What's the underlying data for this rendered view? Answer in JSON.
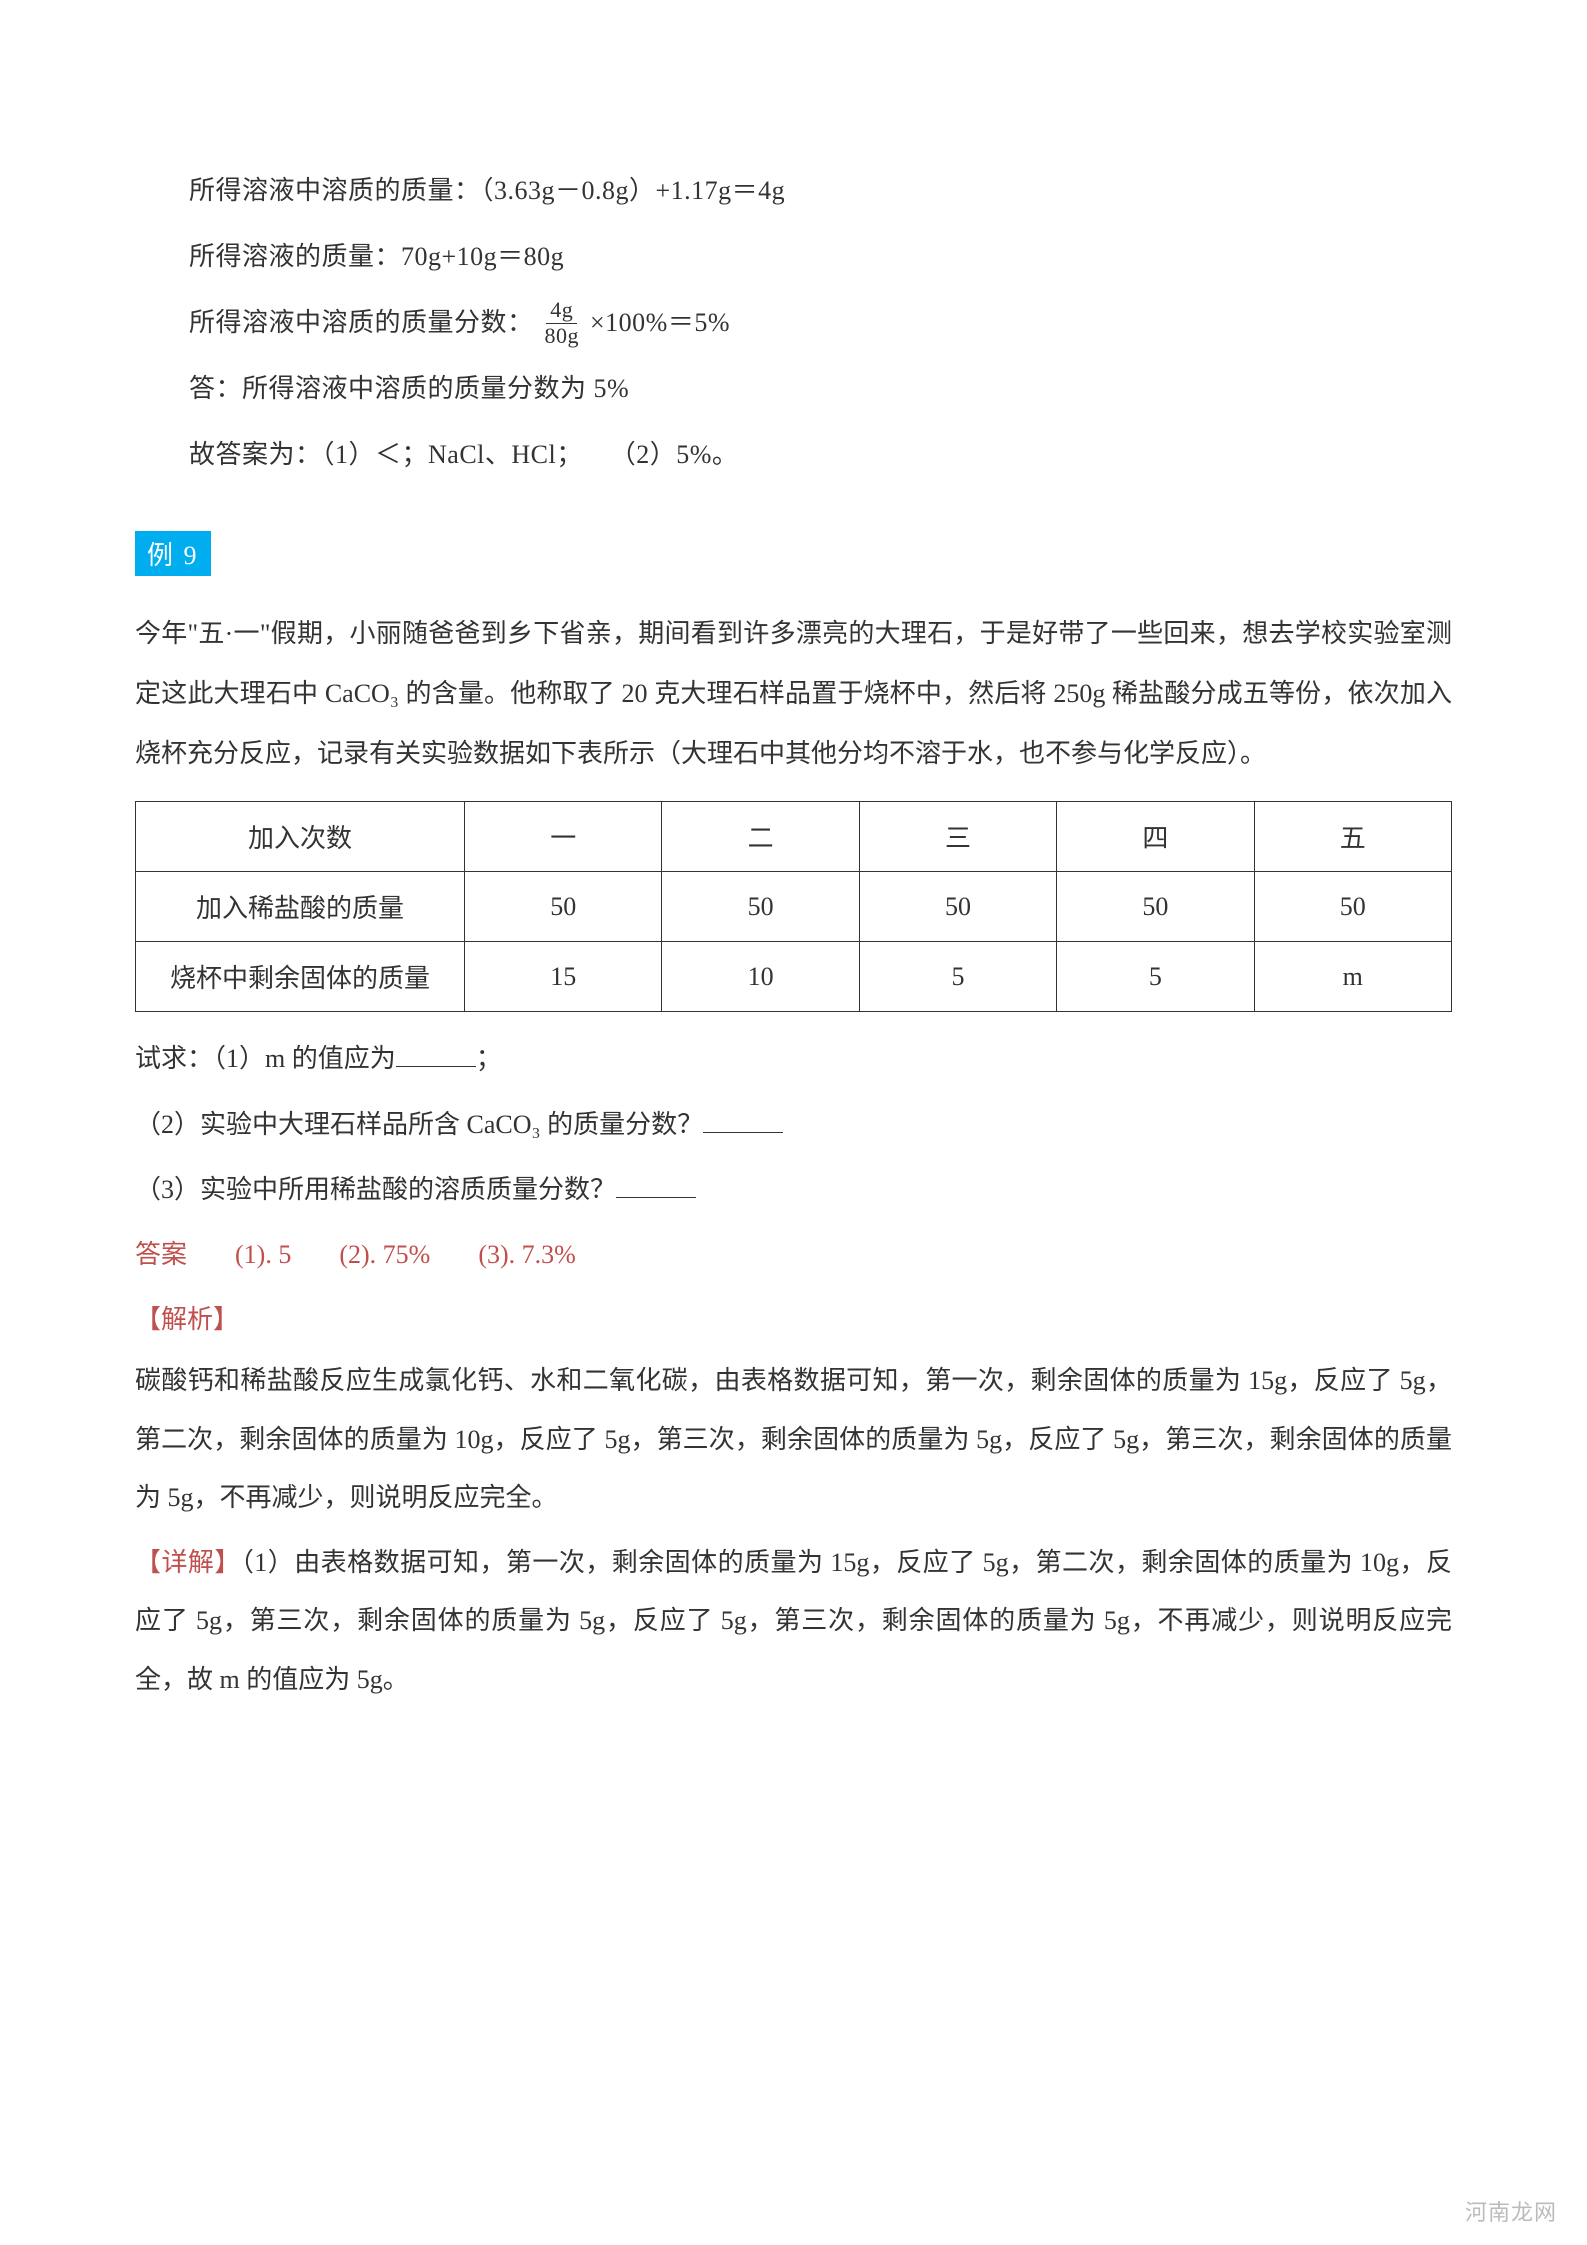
{
  "solution_lines": {
    "l1": "所得溶液中溶质的质量：（3.63g－0.8g）+1.17g＝4g",
    "l2": "所得溶液的质量：70g+10g＝80g",
    "l3_pre": "所得溶液中溶质的质量分数：",
    "l3_frac_num": "4g",
    "l3_frac_den": "80g",
    "l3_post": "×100%＝5%",
    "l4": "答：所得溶液中溶质的质量分数为 5%",
    "l5": "故答案为：（1）＜；NaCl、HCl；　　（2）5%。"
  },
  "example_tag": "例 9",
  "problem_text": "今年\"五·一\"假期，小丽随爸爸到乡下省亲，期间看到许多漂亮的大理石，于是好带了一些回来，想去学校实验室测定这此大理石中 CaCO₃ 的含量。他称取了 20 克大理石样品置于烧杯中，然后将 250g 稀盐酸分成五等份，依次加入烧杯充分反应，记录有关实验数据如下表所示（大理石中其他分均不溶于水，也不参与化学反应）。",
  "table": {
    "rows": [
      {
        "label": "加入次数",
        "cells": [
          "一",
          "二",
          "三",
          "四",
          "五"
        ]
      },
      {
        "label": "加入稀盐酸的质量",
        "cells": [
          "50",
          "50",
          "50",
          "50",
          "50"
        ]
      },
      {
        "label": "烧杯中剩余固体的质量",
        "cells": [
          "15",
          "10",
          "5",
          "5",
          "m"
        ]
      }
    ]
  },
  "questions": {
    "q1_pre": "试求：（1）m 的值应为",
    "q1_post": "；",
    "q2": "（2）实验中大理石样品所含 CaCO₃ 的质量分数？",
    "q3": "（3）实验中所用稀盐酸的溶质质量分数？"
  },
  "answer_line": {
    "label": "答案",
    "a1": "(1). 5",
    "a2": "(2). 75%",
    "a3": "(3). 7.3%"
  },
  "analysis_label": "【解析】",
  "analysis_text": "碳酸钙和稀盐酸反应生成氯化钙、水和二氧化碳，由表格数据可知，第一次，剩余固体的质量为 15g，反应了 5g，第二次，剩余固体的质量为 10g，反应了 5g，第三次，剩余固体的质量为 5g，反应了 5g，第三次，剩余固体的质量为 5g，不再减少，则说明反应完全。",
  "detail_label": "【详解】",
  "detail_text": "（1）由表格数据可知，第一次，剩余固体的质量为 15g，反应了 5g，第二次，剩余固体的质量为 10g，反应了 5g，第三次，剩余固体的质量为 5g，反应了 5g，第三次，剩余固体的质量为 5g，不再减少，则说明反应完全，故 m 的值应为 5g。",
  "watermark": "河南龙网",
  "colors": {
    "accent_blue": "#00aeef",
    "accent_red": "#c0504d",
    "text": "#333333",
    "watermark": "#bbbbbb"
  }
}
